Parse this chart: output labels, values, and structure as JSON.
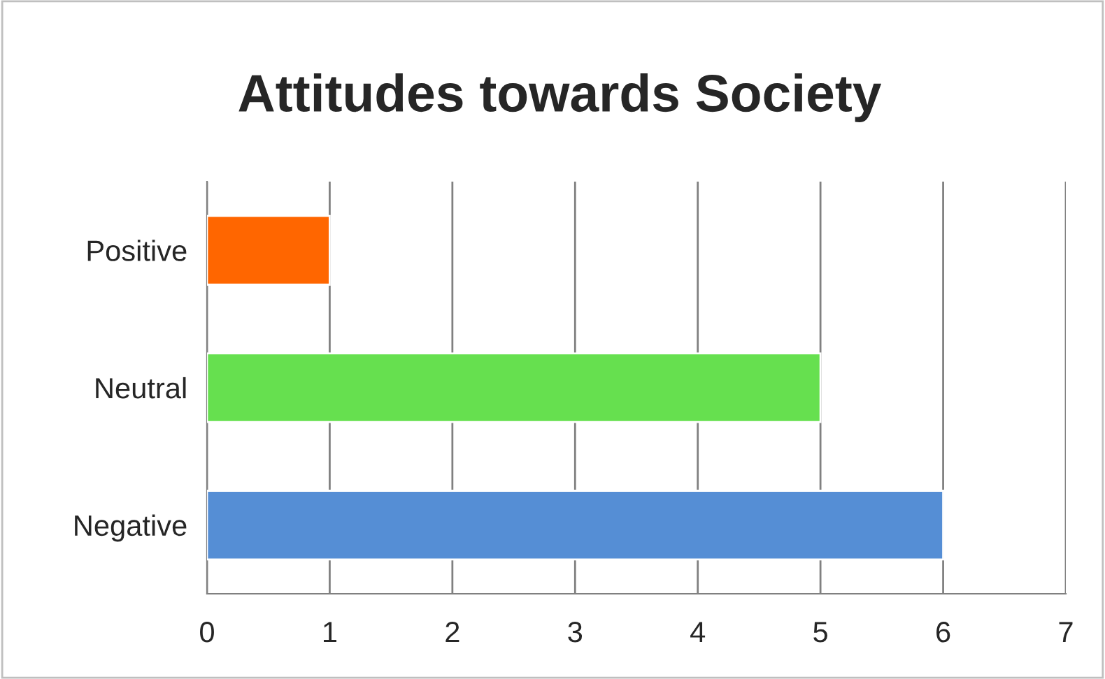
{
  "chart_data": {
    "type": "bar",
    "orientation": "horizontal",
    "title": "Attitudes towards Society",
    "categories": [
      "Positive",
      "Neutral",
      "Negative"
    ],
    "values": [
      1,
      5,
      6
    ],
    "colors": [
      "#ff6600",
      "#66e04f",
      "#558ed5"
    ],
    "xlim": [
      0,
      7
    ],
    "xticks": [
      0,
      1,
      2,
      3,
      4,
      5,
      6,
      7
    ],
    "grid": "x"
  }
}
